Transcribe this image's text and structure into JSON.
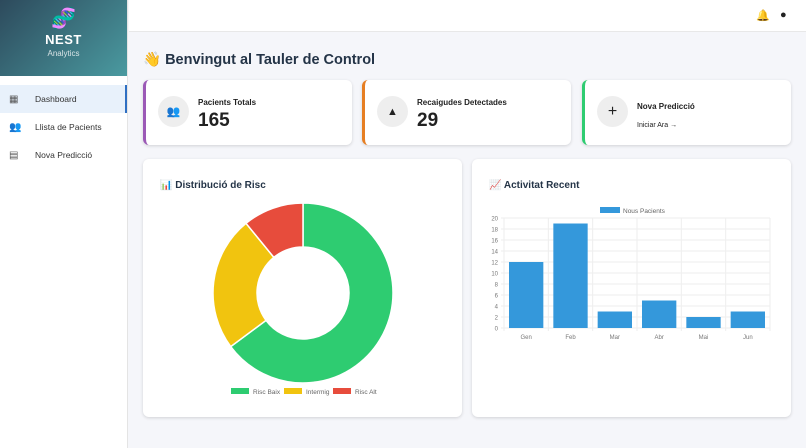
{
  "brand": {
    "logo_icon": "dna-icon",
    "title": "NEST",
    "subtitle": "Analytics"
  },
  "sidebar": {
    "items": [
      {
        "label": "Dashboard",
        "icon": "dashboard-icon",
        "active": true
      },
      {
        "label": "Llista de Pacients",
        "icon": "people-icon"
      },
      {
        "label": "Nova Predicció",
        "icon": "chart-icon"
      }
    ]
  },
  "topbar": {
    "icons": [
      "bell-icon",
      "account-icon"
    ]
  },
  "page_title": "👋 Benvingut al Tauler de Control",
  "stats": [
    {
      "label": "Pacients Totals",
      "value": "165",
      "icon": "people-icon",
      "color": "#9b59b6"
    },
    {
      "label": "Recaigudes Detectades",
      "value": "29",
      "icon": "warning-icon",
      "color": "#e67e22"
    },
    {
      "label": "Nova Predicció",
      "link": "Iniciar Ara →",
      "icon": "plus-icon",
      "color": "#2ecc71"
    }
  ],
  "panels": {
    "risk_title": "📊 Distribució de Risc",
    "activity_title": "📈 Activitat Recent"
  },
  "chart_data": [
    {
      "type": "pie",
      "variant": "doughnut",
      "categories": [
        "Risc Baix",
        "Intermig",
        "Risc Alt"
      ],
      "values": [
        107,
        40,
        18
      ],
      "colors": [
        "#2ecc71",
        "#f1c40f",
        "#e74c3c"
      ],
      "legend": "bottom"
    },
    {
      "type": "bar",
      "categories": [
        "Gen",
        "Feb",
        "Mar",
        "Abr",
        "Mai",
        "Jun"
      ],
      "series": [
        {
          "name": "Nous Pacients",
          "values": [
            12,
            19,
            3,
            5,
            2,
            3
          ],
          "color": "#3498db"
        }
      ],
      "ylim": [
        0,
        20
      ],
      "yticks": [
        0,
        2,
        4,
        6,
        8,
        10,
        12,
        14,
        16,
        18,
        20
      ],
      "grid": true,
      "legend": "top"
    }
  ]
}
